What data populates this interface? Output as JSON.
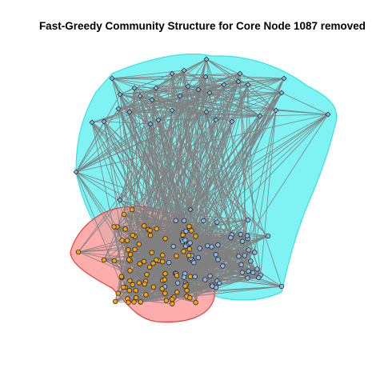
{
  "figure": {
    "title": "Fast-Greedy Community Structure for Core Node 1087 removed"
  },
  "colors": {
    "background": "#ffffff",
    "community_blue_hull": "#7ff3f3",
    "community_blue_hull_border": "#1fe0e0",
    "community_red_hull": "#ff9d9d",
    "community_red_hull_border": "#ee2222",
    "edge": "#808080",
    "node_blue": "#8db4e2",
    "node_orange": "#f5a20c",
    "node_border": "#1a1a1a"
  },
  "network": {
    "algorithm": "fast-greedy",
    "communities": [
      {
        "id": 1,
        "color_name": "blue"
      },
      {
        "id": 2,
        "color_name": "orange"
      }
    ]
  }
}
